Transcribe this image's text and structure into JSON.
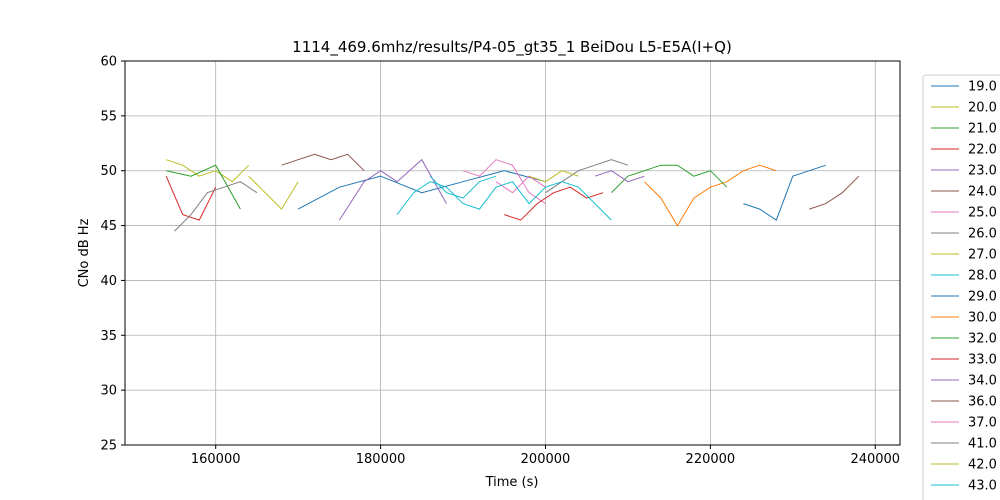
{
  "chart_data": {
    "type": "line",
    "title": "1114_469.6mhz/results/P4-05_gt35_1 BeiDou L5-E5A(I+Q)",
    "xlabel": "Time (s)",
    "ylabel": "CNo dB Hz",
    "xlim": [
      149000,
      243000
    ],
    "ylim": [
      25,
      60
    ],
    "x_ticks": [
      160000,
      180000,
      200000,
      220000,
      240000
    ],
    "x_tick_labels": [
      "160000",
      "180000",
      "200000",
      "220000",
      "240000"
    ],
    "y_ticks": [
      25,
      30,
      35,
      40,
      45,
      50,
      55,
      60
    ],
    "y_tick_labels": [
      "25",
      "30",
      "35",
      "40",
      "45",
      "50",
      "55",
      "60"
    ],
    "grid": true,
    "legend_position": "outside-right",
    "series": [
      {
        "name": "19.0",
        "color": "#1f77b4",
        "x": [
          170000,
          175000,
          180000,
          185000,
          190000,
          195000,
          200000
        ],
        "values": [
          46.5,
          48.5,
          49.5,
          48.0,
          49.0,
          50.0,
          49.0
        ]
      },
      {
        "name": "20.0",
        "color": "#bcbd22",
        "x": [
          154000,
          156000,
          158000,
          160000,
          162000,
          164000
        ],
        "values": [
          51.0,
          50.5,
          49.5,
          50.0,
          49.0,
          50.5
        ]
      },
      {
        "name": "21.0",
        "color": "#2ca02c",
        "x": [
          154000,
          157000,
          160000,
          163000
        ],
        "values": [
          50.0,
          49.5,
          50.5,
          46.5
        ]
      },
      {
        "name": "22.0",
        "color": "#d62728",
        "x": [
          154000,
          156000,
          158000,
          160000
        ],
        "values": [
          49.5,
          46.0,
          45.5,
          48.5
        ]
      },
      {
        "name": "23.0",
        "color": "#9467bd",
        "x": [
          175000,
          178000,
          180000,
          182000,
          185000,
          188000
        ],
        "values": [
          45.5,
          49.0,
          50.0,
          49.0,
          51.0,
          47.0
        ]
      },
      {
        "name": "24.0",
        "color": "#8c564b",
        "x": [
          168000,
          170000,
          172000,
          174000,
          176000,
          178000
        ],
        "values": [
          50.5,
          51.0,
          51.5,
          51.0,
          51.5,
          50.0
        ]
      },
      {
        "name": "25.0",
        "color": "#e377c2",
        "x": [
          190000,
          192000,
          194000,
          196000,
          198000,
          200000
        ],
        "values": [
          50.0,
          49.5,
          51.0,
          50.5,
          48.0,
          47.0
        ]
      },
      {
        "name": "26.0",
        "color": "#7f7f7f",
        "x": [
          155000,
          157000,
          159000,
          161000,
          163000,
          165000
        ],
        "values": [
          44.5,
          46.0,
          48.0,
          48.5,
          49.0,
          48.0
        ]
      },
      {
        "name": "27.0",
        "color": "#bcbd22",
        "x": [
          164000,
          166000,
          168000,
          170000
        ],
        "values": [
          49.5,
          48.0,
          46.5,
          49.0
        ]
      },
      {
        "name": "28.0",
        "color": "#17becf",
        "x": [
          186000,
          188000,
          190000,
          192000,
          194000
        ],
        "values": [
          49.5,
          48.0,
          47.5,
          49.0,
          49.5
        ]
      },
      {
        "name": "29.0",
        "color": "#1f77b4",
        "x": [
          224000,
          226000,
          228000,
          230000,
          232000,
          234000
        ],
        "values": [
          47.0,
          46.5,
          45.5,
          49.5,
          50.0,
          50.5
        ]
      },
      {
        "name": "30.0",
        "color": "#ff7f0e",
        "x": [
          212000,
          214000,
          216000,
          218000,
          220000,
          222000,
          224000,
          226000,
          228000
        ],
        "values": [
          49.0,
          47.5,
          45.0,
          47.5,
          48.5,
          49.0,
          50.0,
          50.5,
          50.0
        ]
      },
      {
        "name": "32.0",
        "color": "#2ca02c",
        "x": [
          208000,
          210000,
          212000,
          214000,
          216000,
          218000,
          220000,
          222000
        ],
        "values": [
          48.0,
          49.5,
          50.0,
          50.5,
          50.5,
          49.5,
          50.0,
          48.5
        ]
      },
      {
        "name": "33.0",
        "color": "#d62728",
        "x": [
          195000,
          197000,
          199000,
          201000,
          203000,
          205000,
          207000
        ],
        "values": [
          46.0,
          45.5,
          47.0,
          48.0,
          48.5,
          47.5,
          48.0
        ]
      },
      {
        "name": "34.0",
        "color": "#9467bd",
        "x": [
          206000,
          208000,
          210000,
          212000
        ],
        "values": [
          49.5,
          50.0,
          49.0,
          49.5
        ]
      },
      {
        "name": "36.0",
        "color": "#8c564b",
        "x": [
          232000,
          234000,
          236000,
          238000
        ],
        "values": [
          46.5,
          47.0,
          48.0,
          49.5
        ]
      },
      {
        "name": "37.0",
        "color": "#e377c2",
        "x": [
          194000,
          196000,
          198000,
          200000
        ],
        "values": [
          49.0,
          48.0,
          49.5,
          48.5
        ]
      },
      {
        "name": "41.0",
        "color": "#7f7f7f",
        "x": [
          200000,
          202000,
          204000,
          206000,
          208000,
          210000
        ],
        "values": [
          48.0,
          49.0,
          50.0,
          50.5,
          51.0,
          50.5
        ]
      },
      {
        "name": "42.0",
        "color": "#bcbd22",
        "x": [
          198000,
          200000,
          202000,
          204000
        ],
        "values": [
          49.5,
          49.0,
          50.0,
          49.5
        ]
      },
      {
        "name": "43.0",
        "color": "#17becf",
        "x": [
          182000,
          184000,
          186000,
          188000,
          190000,
          192000,
          194000,
          196000,
          198000,
          200000,
          202000,
          204000,
          206000,
          208000
        ],
        "values": [
          46.0,
          48.0,
          49.0,
          48.5,
          47.0,
          46.5,
          48.5,
          49.0,
          47.0,
          48.5,
          49.0,
          48.5,
          47.0,
          45.5
        ]
      }
    ]
  }
}
